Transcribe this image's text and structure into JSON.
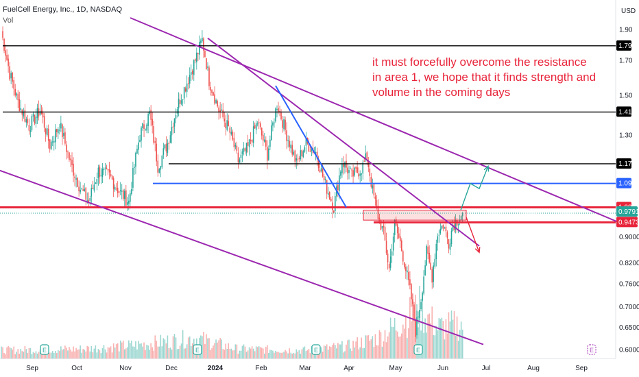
{
  "header": {
    "symbol_title": "FuelCell Energy, Inc., 1D, NASDAQ",
    "volume_label": "Vol",
    "currency": "USD"
  },
  "annotation": {
    "lines": [
      "it must forcefully overcome the resistance",
      "in area 1, we hope that it finds strength and",
      "volume in the coming days"
    ]
  },
  "chart_data": {
    "type": "candlestick",
    "y_axis": {
      "scale": "log",
      "range": [
        0.58,
        1.98
      ],
      "ticks": [
        "1.90",
        "1.70",
        "1.50",
        "1.30",
        "0.9000",
        "0.8200",
        "0.7600",
        "0.7000",
        "0.6500",
        "0.6000"
      ]
    },
    "x_axis": {
      "ticks": [
        "Sep",
        "Oct",
        "Nov",
        "Dec",
        "2024",
        "Feb",
        "Mar",
        "Apr",
        "May",
        "Jun",
        "Jul",
        "Aug",
        "Sep"
      ]
    },
    "earnings_markers": [
      "E",
      "E",
      "E",
      "E",
      "E"
    ],
    "horizontal_levels": [
      {
        "value": 1.79,
        "label": "1.79",
        "color": "#000000"
      },
      {
        "value": 1.41,
        "label": "1.41",
        "color": "#000000"
      },
      {
        "value": 1.17,
        "label": "1.17",
        "color": "#000000"
      },
      {
        "value": 1.09,
        "label": "1.09",
        "color": "#2962ff"
      },
      {
        "value": 1.0,
        "label": "1.00",
        "color": "#e8243a"
      },
      {
        "value": 0.9473,
        "label": "0.9473",
        "color": "#e8243a"
      }
    ],
    "last_price": {
      "value": 0.9791,
      "label": "0.9791",
      "color": "#26a69a"
    },
    "resistance_zone": {
      "low": 0.955,
      "high": 0.99
    },
    "trendlines": [
      {
        "from": [
          "Aug 20",
          1.98
        ],
        "to": [
          "Sep 24 2024",
          0.95
        ],
        "color": "#9c27b0"
      },
      {
        "from": [
          "Aug 17",
          1.15
        ],
        "to": [
          "Jul 01",
          0.61
        ],
        "color": "#9c27b0"
      },
      {
        "from": [
          "Dec 31",
          1.84
        ],
        "to": [
          "Jun 25",
          0.87
        ],
        "color": "#9c27b0"
      },
      {
        "from": [
          "Feb 12",
          1.55
        ],
        "to": [
          "Apr 03",
          1.0
        ],
        "color": "#2962ff"
      }
    ],
    "scenarios": [
      {
        "name": "bullish path",
        "color": "#26a69a",
        "points": [
          [
            "Jun 12",
            0.99
          ],
          [
            "Jun 20",
            1.09
          ],
          [
            "Jun 25",
            1.07
          ],
          [
            "Jun 30",
            1.16
          ]
        ]
      },
      {
        "name": "bearish path",
        "color": "#e8243a",
        "points": [
          [
            "Jun 14",
            0.965
          ],
          [
            "Jun 25",
            0.85
          ]
        ]
      }
    ],
    "series": [
      {
        "name": "price",
        "anchors": [
          [
            0,
            1.88
          ],
          [
            6,
            1.62
          ],
          [
            12,
            1.46
          ],
          [
            20,
            1.34
          ],
          [
            28,
            1.42
          ],
          [
            35,
            1.25
          ],
          [
            42,
            1.35
          ],
          [
            50,
            1.17
          ],
          [
            57,
            1.07
          ],
          [
            63,
            1.02
          ],
          [
            70,
            1.14
          ],
          [
            78,
            1.12
          ],
          [
            85,
            1.06
          ],
          [
            92,
            1.02
          ],
          [
            100,
            1.3
          ],
          [
            107,
            1.4
          ],
          [
            113,
            1.16
          ],
          [
            120,
            1.26
          ],
          [
            127,
            1.44
          ],
          [
            134,
            1.57
          ],
          [
            140,
            1.7
          ],
          [
            145,
            1.83
          ],
          [
            150,
            1.58
          ],
          [
            157,
            1.42
          ],
          [
            164,
            1.33
          ],
          [
            171,
            1.18
          ],
          [
            178,
            1.24
          ],
          [
            185,
            1.36
          ],
          [
            192,
            1.21
          ],
          [
            199,
            1.45
          ],
          [
            206,
            1.3
          ],
          [
            213,
            1.17
          ],
          [
            220,
            1.26
          ],
          [
            227,
            1.22
          ],
          [
            233,
            1.1
          ],
          [
            240,
            1.0
          ],
          [
            246,
            1.18
          ],
          [
            253,
            1.12
          ],
          [
            260,
            1.15
          ],
          [
            264,
            1.2
          ],
          [
            268,
            1.06
          ],
          [
            272,
            0.97
          ],
          [
            276,
            0.91
          ],
          [
            280,
            0.8
          ],
          [
            284,
            0.94
          ],
          [
            288,
            0.88
          ],
          [
            292,
            0.8
          ],
          [
            296,
            0.72
          ],
          [
            299,
            0.64
          ],
          [
            303,
            0.72
          ],
          [
            307,
            0.85
          ],
          [
            311,
            0.78
          ],
          [
            315,
            0.91
          ],
          [
            319,
            0.94
          ],
          [
            323,
            0.88
          ],
          [
            326,
            0.94
          ],
          [
            330,
            0.96
          ],
          [
            333,
            0.9791
          ]
        ]
      },
      {
        "name": "volume",
        "profile": [
          [
            0,
            12
          ],
          [
            60,
            14
          ],
          [
            100,
            20
          ],
          [
            140,
            30
          ],
          [
            170,
            14
          ],
          [
            220,
            12
          ],
          [
            250,
            18
          ],
          [
            272,
            30
          ],
          [
            290,
            55
          ],
          [
            302,
            72
          ],
          [
            315,
            45
          ],
          [
            333,
            50
          ]
        ]
      }
    ]
  }
}
